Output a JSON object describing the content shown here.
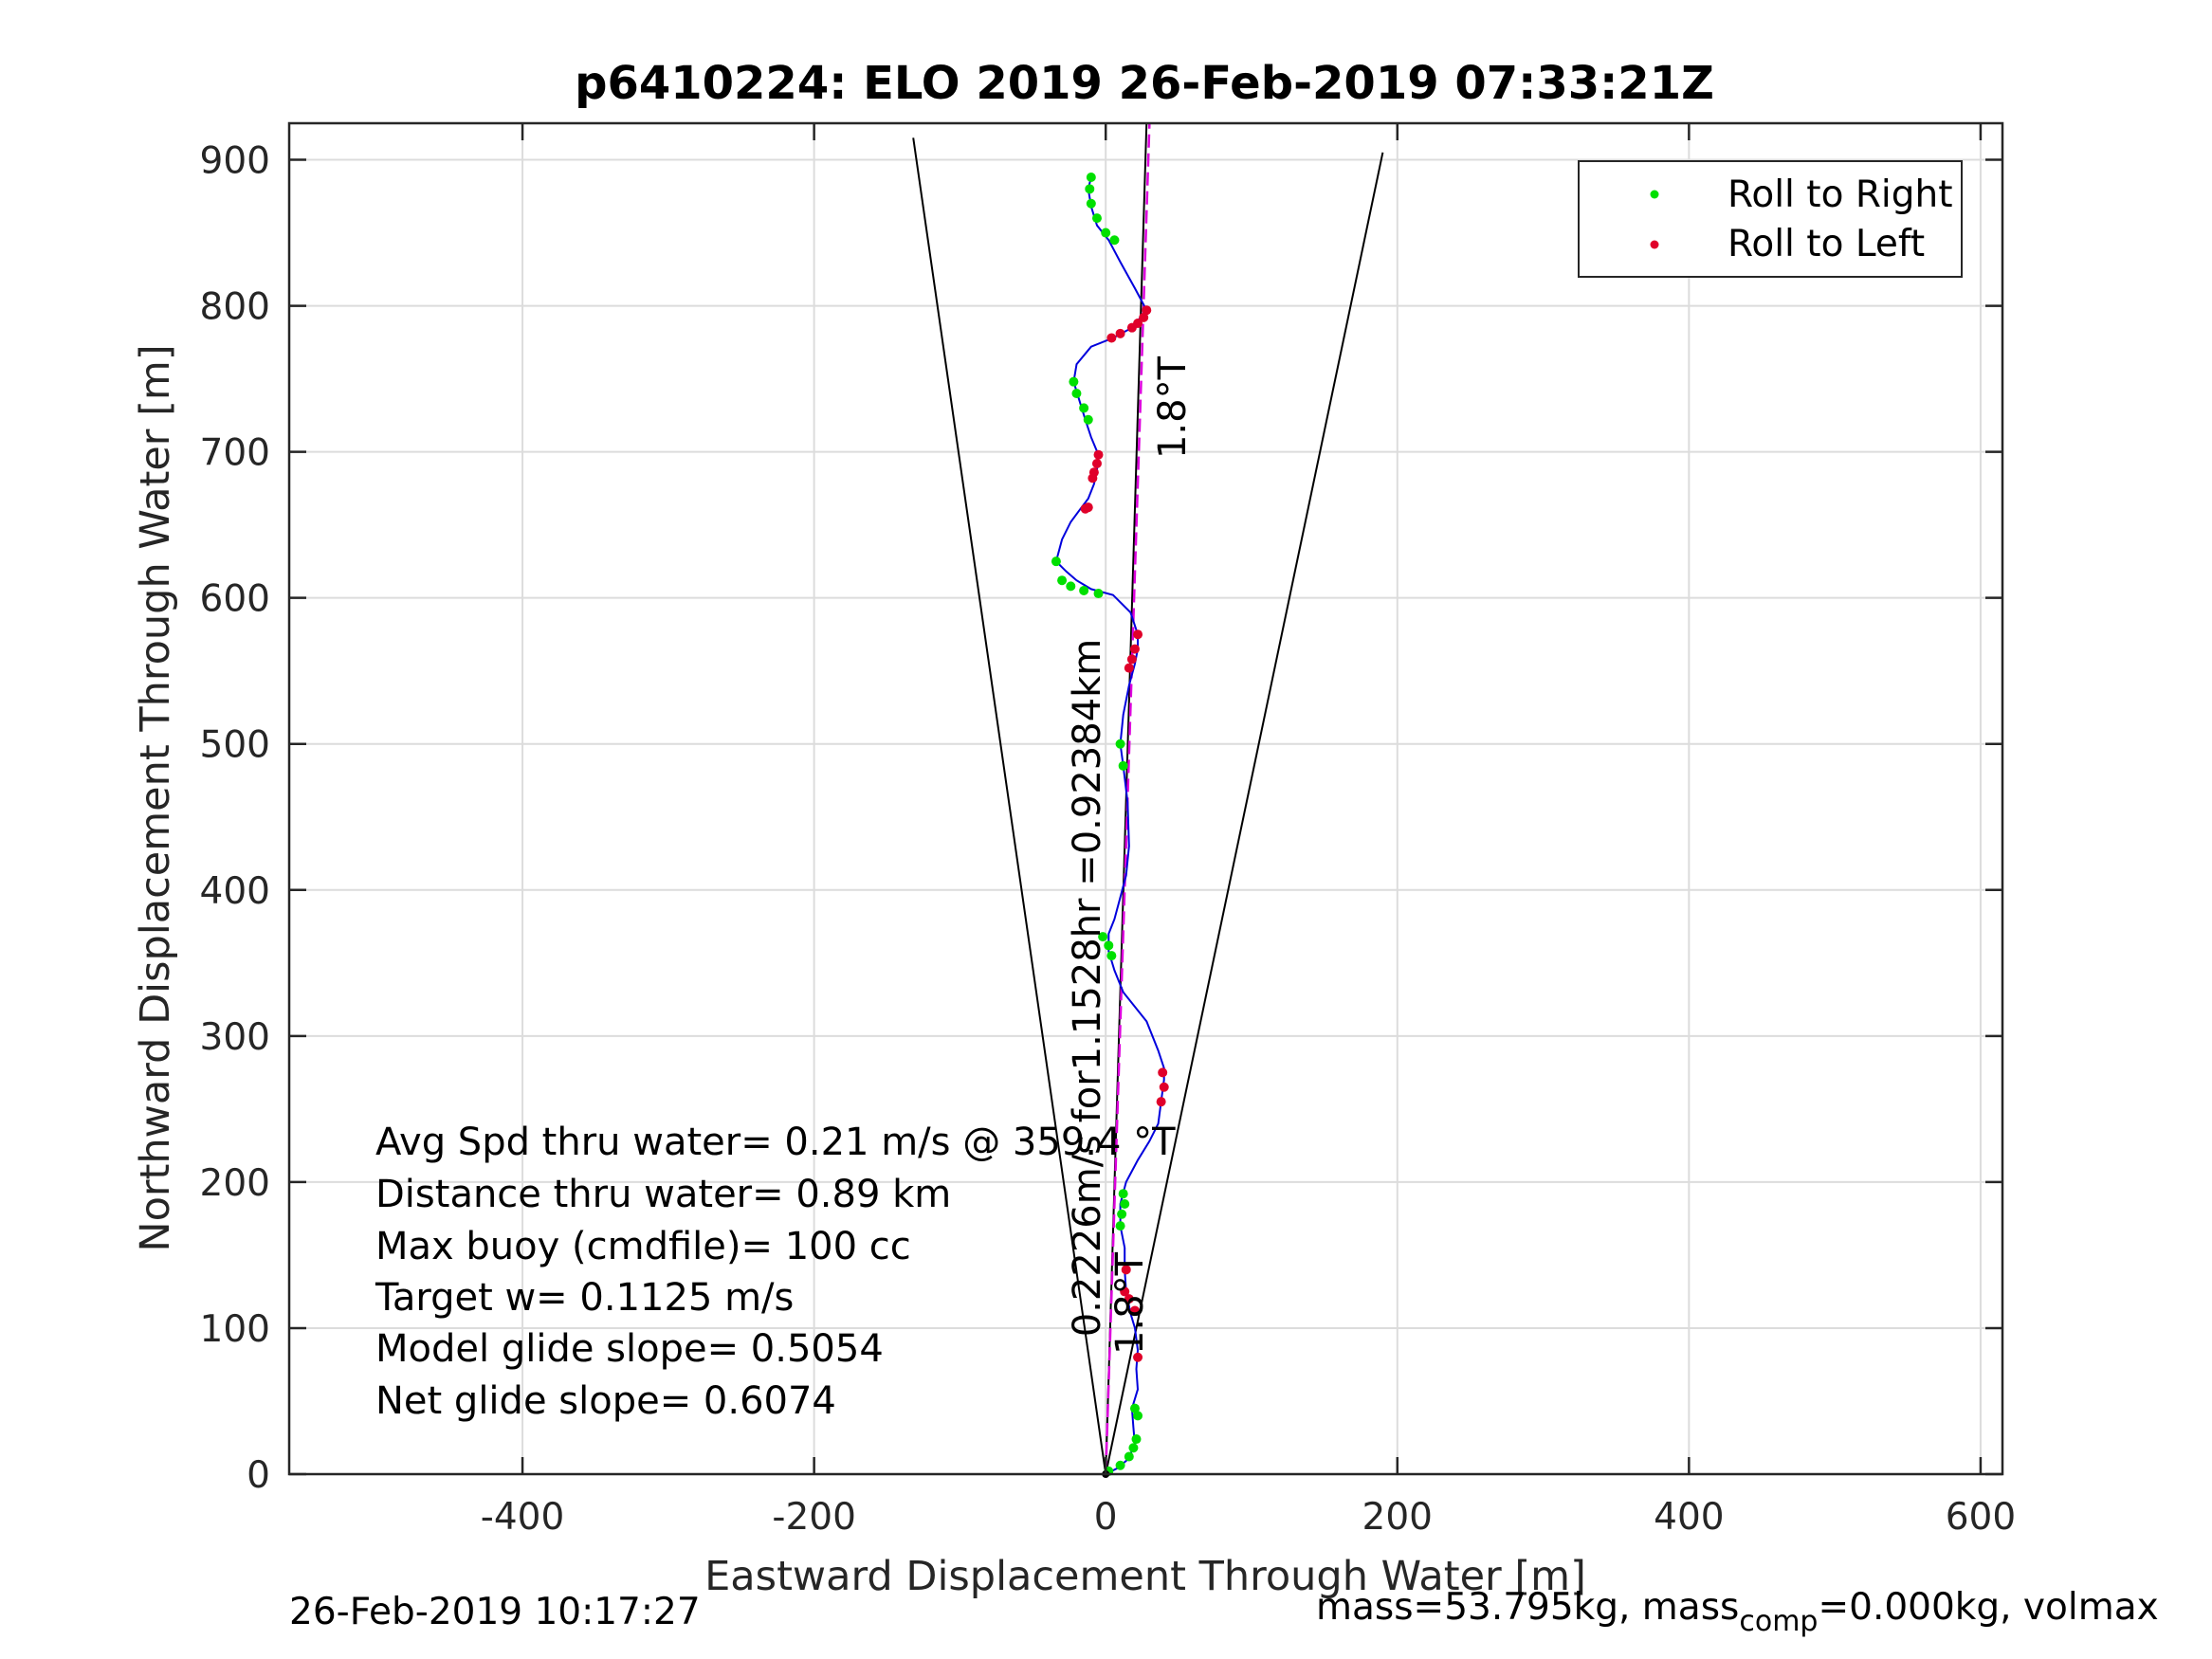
{
  "chart_data": {
    "type": "scatter",
    "title": "p6410224: ELO 2019 26-Feb-2019 07:33:21Z",
    "xlabel": "Eastward Displacement Through Water [m]",
    "ylabel": "Northward Displacement Through Water [m]",
    "xlim": [
      -560,
      615
    ],
    "ylim": [
      0,
      925
    ],
    "xticks": [
      -400,
      -200,
      0,
      200,
      400,
      600
    ],
    "yticks": [
      0,
      100,
      200,
      300,
      400,
      500,
      600,
      700,
      800,
      900
    ],
    "grid": true,
    "legend": {
      "placement": "top-right",
      "entries": [
        "Roll to Right",
        "Roll to Left"
      ]
    },
    "colors": {
      "roll_right": "#00e000",
      "roll_left": "#e0002a",
      "track": "#0000dd",
      "heading_line": "#dd00dd",
      "cone": "#000000",
      "axes": "#262626",
      "grid": "#dcdcdc"
    },
    "track": [
      [
        0,
        0
      ],
      [
        8,
        4
      ],
      [
        15,
        10
      ],
      [
        20,
        20
      ],
      [
        19,
        32
      ],
      [
        18,
        45
      ],
      [
        22,
        58
      ],
      [
        21,
        72
      ],
      [
        22,
        85
      ],
      [
        20,
        100
      ],
      [
        17,
        110
      ],
      [
        14,
        125
      ],
      [
        13,
        140
      ],
      [
        13,
        155
      ],
      [
        10,
        170
      ],
      [
        10,
        185
      ],
      [
        14,
        200
      ],
      [
        22,
        215
      ],
      [
        30,
        228
      ],
      [
        36,
        240
      ],
      [
        38,
        255
      ],
      [
        40,
        270
      ],
      [
        40,
        278
      ],
      [
        36,
        290
      ],
      [
        28,
        310
      ],
      [
        12,
        330
      ],
      [
        6,
        345
      ],
      [
        2,
        358
      ],
      [
        2,
        370
      ],
      [
        6,
        380
      ],
      [
        10,
        395
      ],
      [
        14,
        410
      ],
      [
        16,
        430
      ],
      [
        15,
        460
      ],
      [
        12,
        485
      ],
      [
        10,
        500
      ],
      [
        12,
        520
      ],
      [
        16,
        540
      ],
      [
        20,
        555
      ],
      [
        22,
        565
      ],
      [
        22,
        575
      ],
      [
        17,
        590
      ],
      [
        5,
        602
      ],
      [
        -10,
        606
      ],
      [
        -20,
        612
      ],
      [
        -27,
        618
      ],
      [
        -34,
        625
      ],
      [
        -30,
        640
      ],
      [
        -24,
        652
      ],
      [
        -18,
        660
      ],
      [
        -12,
        668
      ],
      [
        -8,
        678
      ],
      [
        -6,
        688
      ],
      [
        -5,
        698
      ],
      [
        -10,
        710
      ],
      [
        -14,
        722
      ],
      [
        -18,
        735
      ],
      [
        -22,
        748
      ],
      [
        -20,
        760
      ],
      [
        -10,
        772
      ],
      [
        5,
        778
      ],
      [
        18,
        785
      ],
      [
        28,
        797
      ],
      [
        20,
        812
      ],
      [
        10,
        830
      ],
      [
        2,
        845
      ],
      [
        -6,
        855
      ],
      [
        -10,
        868
      ],
      [
        -12,
        880
      ],
      [
        -10,
        888
      ]
    ],
    "series": [
      {
        "name": "Roll to Right",
        "points": [
          [
            2,
            2
          ],
          [
            10,
            6
          ],
          [
            16,
            12
          ],
          [
            19,
            18
          ],
          [
            21,
            24
          ],
          [
            22,
            40
          ],
          [
            20,
            45
          ],
          [
            10,
            170
          ],
          [
            11,
            178
          ],
          [
            13,
            185
          ],
          [
            12,
            192
          ],
          [
            4,
            355
          ],
          [
            2,
            362
          ],
          [
            -2,
            368
          ],
          [
            12,
            485
          ],
          [
            10,
            500
          ],
          [
            -34,
            625
          ],
          [
            -30,
            612
          ],
          [
            -24,
            608
          ],
          [
            -15,
            605
          ],
          [
            -5,
            603
          ],
          [
            -22,
            748
          ],
          [
            -20,
            740
          ],
          [
            -15,
            730
          ],
          [
            -12,
            722
          ],
          [
            -10,
            888
          ],
          [
            -11,
            880
          ],
          [
            -10,
            870
          ],
          [
            -6,
            860
          ],
          [
            0,
            850
          ],
          [
            6,
            845
          ]
        ]
      },
      {
        "name": "Roll to Left",
        "points": [
          [
            14,
            140
          ],
          [
            13,
            125
          ],
          [
            16,
            120
          ],
          [
            20,
            112
          ],
          [
            22,
            80
          ],
          [
            38,
            255
          ],
          [
            40,
            265
          ],
          [
            39,
            275
          ],
          [
            22,
            575
          ],
          [
            20,
            565
          ],
          [
            18,
            558
          ],
          [
            16,
            552
          ],
          [
            -12,
            662
          ],
          [
            -14,
            661
          ],
          [
            -5,
            698
          ],
          [
            -6,
            692
          ],
          [
            -8,
            686
          ],
          [
            -9,
            682
          ],
          [
            28,
            797
          ],
          [
            26,
            792
          ],
          [
            22,
            788
          ],
          [
            18,
            785
          ],
          [
            10,
            781
          ],
          [
            4,
            778
          ]
        ]
      }
    ],
    "heading_line": {
      "from": [
        0,
        0
      ],
      "to": [
        30,
        925
      ]
    },
    "track_line": {
      "from": [
        0,
        0
      ],
      "to": [
        28,
        925
      ]
    },
    "cone_lines": [
      {
        "from": [
          0,
          0
        ],
        "to": [
          -132,
          915
        ]
      },
      {
        "from": [
          0,
          0
        ],
        "to": [
          190,
          905
        ]
      }
    ],
    "annotations": {
      "heading_label": "1.8°T",
      "heading_label_lower": "1.8°T",
      "speed_label": "0.2226m/s for1.1528hr =0.92384km",
      "stats": [
        "Avg Spd thru water=  0.21 m/s @ 359.4 °T",
        "Distance thru water=  0.89 km",
        "Max buoy (cmdfile)= 100 cc",
        "Target w= 0.1125 m/s",
        "Model glide slope= 0.5054",
        "Net glide slope= 0.6074"
      ]
    }
  },
  "footer": {
    "timestamp": "26-Feb-2019 10:17:27",
    "mass_prefix": "mass=53.795kg, mass",
    "mass_sub": "comp",
    "mass_suffix": "=0.000kg, volmax"
  }
}
